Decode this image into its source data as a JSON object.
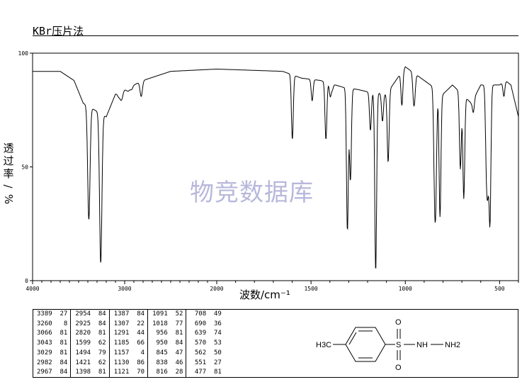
{
  "header": {
    "title": "KBr压片法"
  },
  "watermark": "物竞数据库",
  "chart_data": {
    "type": "line",
    "xlabel": "波数/cm⁻¹",
    "ylabel_chars": [
      "透",
      "过",
      "率",
      "/",
      "%"
    ],
    "xlim": [
      4000,
      400
    ],
    "ylim": [
      0,
      100
    ],
    "x_ticks": [
      "4000",
      "3000",
      "2000",
      "1500",
      "1000",
      "500"
    ],
    "y_ticks": [
      "0",
      "50",
      "100"
    ],
    "peaks": [
      {
        "x": 3389,
        "y": 27
      },
      {
        "x": 3260,
        "y": 8
      },
      {
        "x": 3066,
        "y": 81
      },
      {
        "x": 3043,
        "y": 81
      },
      {
        "x": 3029,
        "y": 81
      },
      {
        "x": 2982,
        "y": 84
      },
      {
        "x": 2967,
        "y": 84
      },
      {
        "x": 2954,
        "y": 84
      },
      {
        "x": 2925,
        "y": 84
      },
      {
        "x": 2820,
        "y": 81
      },
      {
        "x": 1599,
        "y": 62
      },
      {
        "x": 1494,
        "y": 79
      },
      {
        "x": 1421,
        "y": 62
      },
      {
        "x": 1398,
        "y": 81
      },
      {
        "x": 1387,
        "y": 84
      },
      {
        "x": 1307,
        "y": 22
      },
      {
        "x": 1291,
        "y": 44
      },
      {
        "x": 1185,
        "y": 66
      },
      {
        "x": 1157,
        "y": 4
      },
      {
        "x": 1130,
        "y": 86
      },
      {
        "x": 1121,
        "y": 70
      },
      {
        "x": 1091,
        "y": 52
      },
      {
        "x": 1018,
        "y": 77
      },
      {
        "x": 956,
        "y": 81
      },
      {
        "x": 950,
        "y": 84
      },
      {
        "x": 845,
        "y": 47
      },
      {
        "x": 838,
        "y": 46
      },
      {
        "x": 816,
        "y": 28
      },
      {
        "x": 708,
        "y": 49
      },
      {
        "x": 690,
        "y": 36
      },
      {
        "x": 639,
        "y": 74
      },
      {
        "x": 570,
        "y": 53
      },
      {
        "x": 562,
        "y": 50
      },
      {
        "x": 551,
        "y": 27
      },
      {
        "x": 477,
        "y": 81
      }
    ]
  },
  "table": {
    "columns": [
      [
        "3389  27",
        "3260   8",
        "3066  81",
        "3043  81",
        "3029  81",
        "2982  84",
        "2967  84"
      ],
      [
        "2954  84",
        "2925  84",
        "2820  81",
        "1599  62",
        "1494  79",
        "1421  62",
        "1398  81"
      ],
      [
        "1387  84",
        "1307  22",
        "1291  44",
        "1185  66",
        "1157   4",
        "1130  86",
        "1121  70"
      ],
      [
        "1091  52",
        "1018  77",
        " 956  81",
        " 950  84",
        " 845  47",
        " 838  46",
        " 816  28"
      ],
      [
        " 708  49",
        " 690  36",
        " 639  74",
        " 570  53",
        " 562  50",
        " 551  27",
        " 477  81"
      ]
    ]
  },
  "structure": {
    "left_group": "H3C",
    "atoms": {
      "s": "S",
      "o_top": "O",
      "o_bottom": "O",
      "nh": "NH",
      "nh2": "NH2"
    }
  }
}
